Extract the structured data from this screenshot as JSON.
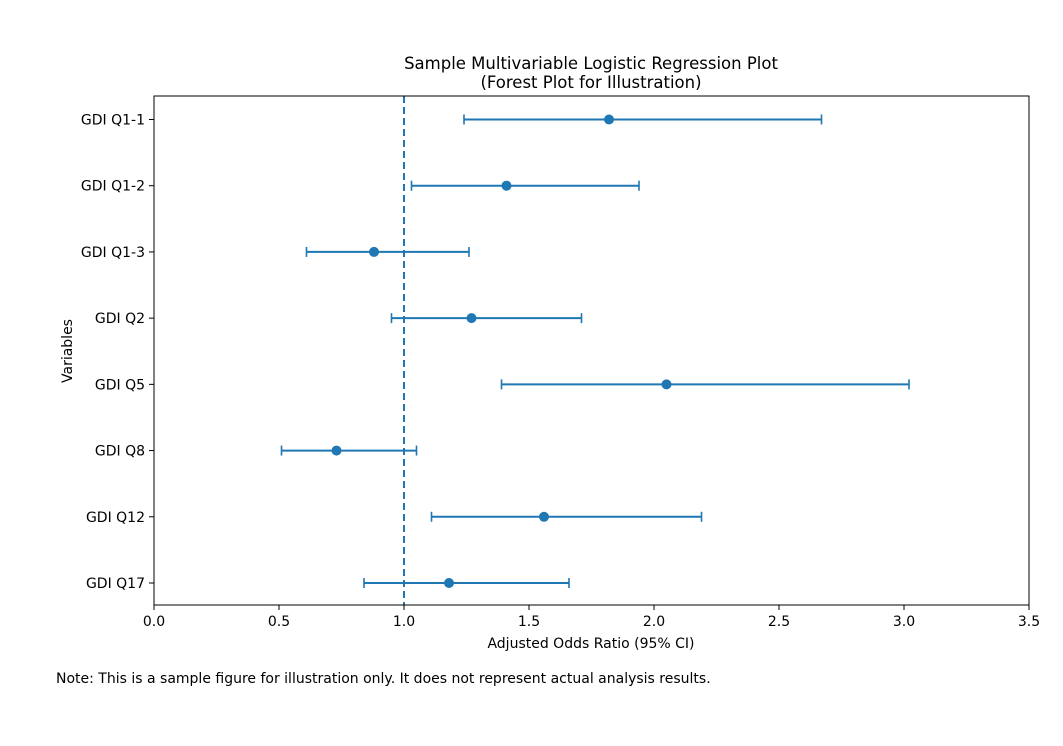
{
  "chart_data": {
    "type": "scatter",
    "subtype": "forest-plot",
    "title": "Sample Multivariable Logistic Regression Plot",
    "subtitle": "(Forest Plot for Illustration)",
    "xlabel": "Adjusted Odds Ratio (95% CI)",
    "ylabel": "Variables",
    "xlim": [
      0.0,
      3.5
    ],
    "xticks": [
      "0.0",
      "0.5",
      "1.0",
      "1.5",
      "2.0",
      "2.5",
      "3.0",
      "3.5"
    ],
    "reference_line": 1.0,
    "grid": false,
    "color": "#1f77b4",
    "categories": [
      "GDI Q1-1",
      "GDI Q1-2",
      "GDI Q1-3",
      "GDI Q2",
      "GDI Q5",
      "GDI Q8",
      "GDI Q12",
      "GDI Q17"
    ],
    "odds_ratio": [
      1.82,
      1.41,
      0.88,
      1.27,
      2.05,
      0.73,
      1.56,
      1.18
    ],
    "ci_lower": [
      1.24,
      1.03,
      0.61,
      0.95,
      1.39,
      0.51,
      1.11,
      0.84
    ],
    "ci_upper": [
      2.67,
      1.94,
      1.26,
      1.71,
      3.02,
      1.05,
      2.19,
      1.66
    ]
  },
  "note": "Note: This is a sample figure for illustration only. It does not represent actual analysis results."
}
